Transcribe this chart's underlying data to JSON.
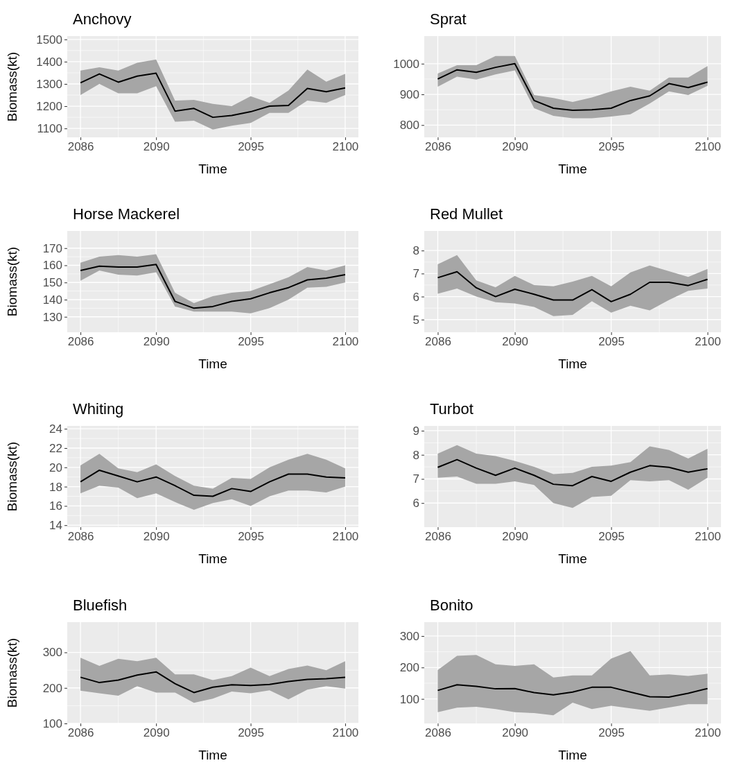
{
  "chart_data": [
    {
      "type": "line",
      "title": "Anchovy",
      "xlabel": "Time",
      "ylabel": "Biomass(kt)",
      "x": [
        2086,
        2087,
        2088,
        2089,
        2090,
        2091,
        2092,
        2093,
        2094,
        2095,
        2096,
        2097,
        2098,
        2099,
        2100
      ],
      "xlim": [
        2085.3,
        2100.7
      ],
      "xticks": [
        2086,
        2090,
        2095,
        2100
      ],
      "ylim": [
        1060,
        1515
      ],
      "yticks": [
        1100,
        1200,
        1300,
        1400,
        1500
      ],
      "grid": true,
      "series": [
        {
          "color": "#000000",
          "values": [
            1305,
            1345,
            1308,
            1335,
            1348,
            1178,
            1190,
            1150,
            1158,
            1175,
            1200,
            1203,
            1280,
            1265,
            1282
          ],
          "lower": [
            1250,
            1300,
            1258,
            1258,
            1290,
            1130,
            1135,
            1095,
            1112,
            1125,
            1170,
            1170,
            1225,
            1215,
            1250
          ],
          "upper": [
            1360,
            1375,
            1360,
            1395,
            1410,
            1225,
            1228,
            1210,
            1200,
            1245,
            1215,
            1270,
            1365,
            1310,
            1345
          ]
        }
      ]
    },
    {
      "type": "line",
      "title": "Sprat",
      "xlabel": "Time",
      "x": [
        2086,
        2087,
        2088,
        2089,
        2090,
        2091,
        2092,
        2093,
        2094,
        2095,
        2096,
        2097,
        2098,
        2099,
        2100
      ],
      "xlim": [
        2085.3,
        2100.7
      ],
      "xticks": [
        2086,
        2090,
        2095,
        2100
      ],
      "ylim": [
        760,
        1090
      ],
      "yticks": [
        800,
        900,
        1000
      ],
      "grid": true,
      "series": [
        {
          "color": "#000000",
          "values": [
            950,
            980,
            972,
            988,
            1000,
            880,
            855,
            848,
            850,
            855,
            880,
            895,
            935,
            922,
            940
          ],
          "lower": [
            925,
            958,
            948,
            965,
            978,
            855,
            830,
            822,
            822,
            828,
            835,
            870,
            910,
            898,
            928
          ],
          "upper": [
            968,
            995,
            995,
            1025,
            1025,
            898,
            888,
            875,
            890,
            910,
            925,
            912,
            955,
            955,
            992
          ]
        }
      ]
    },
    {
      "type": "line",
      "title": "Horse Mackerel",
      "xlabel": "Time",
      "ylabel": "Biomass(kt)",
      "x": [
        2086,
        2087,
        2088,
        2089,
        2090,
        2091,
        2092,
        2093,
        2094,
        2095,
        2096,
        2097,
        2098,
        2099,
        2100
      ],
      "xlim": [
        2085.3,
        2100.7
      ],
      "xticks": [
        2086,
        2090,
        2095,
        2100
      ],
      "ylim": [
        121,
        180
      ],
      "yticks": [
        130,
        140,
        150,
        160,
        170
      ],
      "grid": true,
      "series": [
        {
          "color": "#000000",
          "values": [
            157,
            159.5,
            159,
            159,
            160.5,
            139,
            135,
            136,
            139,
            140.5,
            144,
            147,
            151.5,
            152.5,
            154.5
          ],
          "lower": [
            151,
            157,
            154.5,
            154,
            156,
            136,
            133,
            133,
            133,
            132,
            135,
            140,
            147,
            147.5,
            150
          ],
          "upper": [
            161.5,
            165,
            166,
            165,
            166.5,
            144,
            138,
            142,
            144,
            145,
            149,
            153,
            159,
            157,
            160
          ]
        }
      ]
    },
    {
      "type": "line",
      "title": "Red Mullet",
      "xlabel": "Time",
      "x": [
        2086,
        2087,
        2088,
        2089,
        2090,
        2091,
        2092,
        2093,
        2094,
        2095,
        2096,
        2097,
        2098,
        2099,
        2100
      ],
      "xlim": [
        2085.3,
        2100.7
      ],
      "xticks": [
        2086,
        2090,
        2095,
        2100
      ],
      "ylim": [
        4.45,
        8.85
      ],
      "yticks": [
        5,
        6,
        7,
        8
      ],
      "grid": true,
      "series": [
        {
          "color": "#000000",
          "values": [
            6.82,
            7.08,
            6.38,
            6.0,
            6.32,
            6.1,
            5.85,
            5.85,
            6.3,
            5.78,
            6.1,
            6.62,
            6.62,
            6.48,
            6.75
          ],
          "lower": [
            6.12,
            6.35,
            6.0,
            5.75,
            5.7,
            5.55,
            5.15,
            5.2,
            5.8,
            5.3,
            5.6,
            5.4,
            5.85,
            6.25,
            6.35
          ],
          "upper": [
            7.4,
            7.8,
            6.7,
            6.4,
            6.9,
            6.5,
            6.45,
            6.65,
            6.9,
            6.45,
            7.05,
            7.35,
            7.1,
            6.85,
            7.2
          ]
        }
      ]
    },
    {
      "type": "line",
      "title": "Whiting",
      "xlabel": "Time",
      "ylabel": "Biomass(kt)",
      "x": [
        2086,
        2087,
        2088,
        2089,
        2090,
        2091,
        2092,
        2093,
        2094,
        2095,
        2096,
        2097,
        2098,
        2099,
        2100
      ],
      "xlim": [
        2085.3,
        2100.7
      ],
      "xticks": [
        2086,
        2090,
        2095,
        2100
      ],
      "ylim": [
        13.8,
        24.3
      ],
      "yticks": [
        14,
        16,
        18,
        20,
        22,
        24
      ],
      "grid": true,
      "series": [
        {
          "color": "#000000",
          "values": [
            18.5,
            19.7,
            19.1,
            18.5,
            19.0,
            18.1,
            17.1,
            17.0,
            17.8,
            17.5,
            18.5,
            19.3,
            19.3,
            19.0,
            18.9
          ],
          "lower": [
            17.3,
            18.1,
            17.9,
            16.8,
            17.3,
            16.4,
            15.6,
            16.3,
            16.7,
            16.0,
            17.0,
            17.6,
            17.6,
            17.4,
            18.0
          ],
          "upper": [
            20.2,
            21.4,
            19.9,
            19.5,
            20.3,
            19.1,
            18.1,
            17.8,
            18.9,
            18.8,
            20.0,
            20.8,
            21.4,
            20.8,
            19.9
          ]
        }
      ]
    },
    {
      "type": "line",
      "title": "Turbot",
      "xlabel": "Time",
      "x": [
        2086,
        2087,
        2088,
        2089,
        2090,
        2091,
        2092,
        2093,
        2094,
        2095,
        2096,
        2097,
        2098,
        2099,
        2100
      ],
      "xlim": [
        2085.3,
        2100.7
      ],
      "xticks": [
        2086,
        2090,
        2095,
        2100
      ],
      "ylim": [
        5.0,
        9.2
      ],
      "yticks": [
        6,
        7,
        8,
        9
      ],
      "grid": true,
      "series": [
        {
          "color": "#000000",
          "values": [
            7.48,
            7.8,
            7.45,
            7.15,
            7.45,
            7.15,
            6.78,
            6.72,
            7.1,
            6.9,
            7.28,
            7.55,
            7.48,
            7.28,
            7.42
          ],
          "lower": [
            7.05,
            7.1,
            6.8,
            6.8,
            6.9,
            6.75,
            6.0,
            5.8,
            6.25,
            6.3,
            6.95,
            6.9,
            6.95,
            6.55,
            7.05
          ],
          "upper": [
            8.05,
            8.4,
            8.05,
            7.95,
            7.75,
            7.5,
            7.2,
            7.25,
            7.5,
            7.55,
            7.7,
            8.35,
            8.2,
            7.85,
            8.25
          ]
        }
      ]
    },
    {
      "type": "line",
      "title": "Bluefish",
      "xlabel": "Time",
      "ylabel": "Biomass(kt)",
      "x": [
        2086,
        2087,
        2088,
        2089,
        2090,
        2091,
        2092,
        2093,
        2094,
        2095,
        2096,
        2097,
        2098,
        2099,
        2100
      ],
      "xlim": [
        2085.3,
        2100.7
      ],
      "xticks": [
        2086,
        2090,
        2095,
        2100
      ],
      "ylim": [
        100,
        385
      ],
      "yticks": [
        100,
        200,
        300
      ],
      "grid": true,
      "series": [
        {
          "color": "#000000",
          "values": [
            230,
            215,
            222,
            236,
            245,
            212,
            187,
            202,
            209,
            207,
            210,
            218,
            224,
            226,
            230
          ],
          "lower": [
            192,
            185,
            178,
            205,
            187,
            187,
            158,
            170,
            190,
            185,
            193,
            168,
            195,
            205,
            198
          ],
          "upper": [
            285,
            262,
            282,
            275,
            285,
            238,
            238,
            222,
            233,
            257,
            233,
            253,
            263,
            250,
            275
          ]
        }
      ]
    },
    {
      "type": "line",
      "title": "Bonito",
      "xlabel": "Time",
      "x": [
        2086,
        2087,
        2088,
        2089,
        2090,
        2091,
        2092,
        2093,
        2094,
        2095,
        2096,
        2097,
        2098,
        2099,
        2100
      ],
      "xlim": [
        2085.3,
        2100.7
      ],
      "xticks": [
        2086,
        2090,
        2095,
        2100
      ],
      "ylim": [
        22,
        344
      ],
      "yticks": [
        100,
        200,
        300
      ],
      "grid": true,
      "series": [
        {
          "color": "#000000",
          "values": [
            127,
            145,
            140,
            132,
            133,
            120,
            113,
            122,
            137,
            137,
            122,
            107,
            106,
            118,
            133
          ],
          "lower": [
            58,
            72,
            75,
            68,
            58,
            55,
            48,
            88,
            68,
            78,
            70,
            62,
            73,
            83,
            83
          ],
          "upper": [
            192,
            237,
            240,
            210,
            205,
            210,
            168,
            175,
            175,
            228,
            252,
            175,
            178,
            173,
            180
          ]
        }
      ]
    }
  ]
}
